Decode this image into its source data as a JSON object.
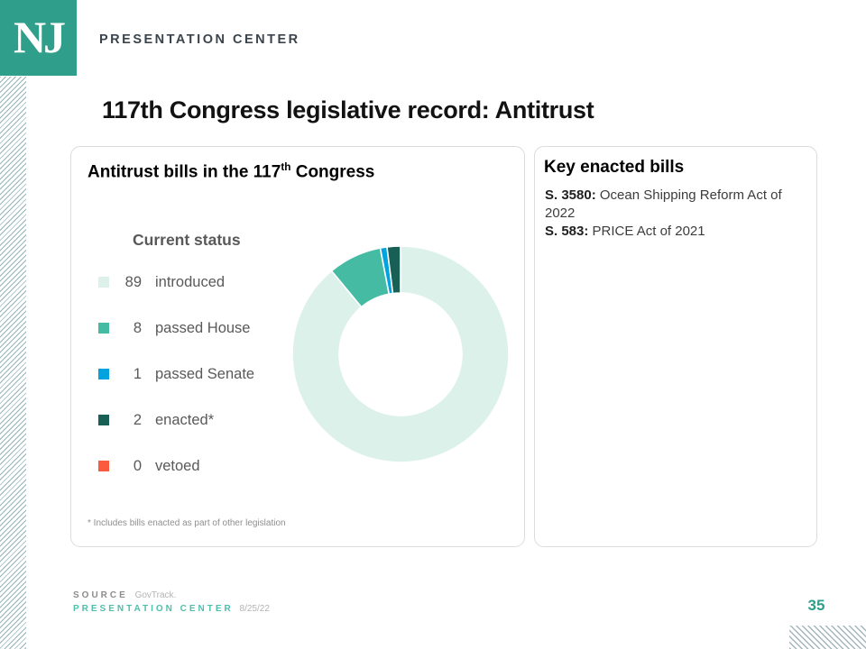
{
  "header": {
    "logo_text": "NJ",
    "brand": "PRESENTATION CENTER"
  },
  "title": "117th Congress legislative record: Antitrust",
  "chart_card": {
    "title_prefix": "Antitrust bills in the 117",
    "title_sup": "th",
    "title_suffix": " Congress",
    "footnote": "* Includes bills enacted as part of other legislation"
  },
  "chart_data": {
    "type": "pie",
    "donut": true,
    "title": "Current status",
    "categories": [
      "introduced",
      "passed House",
      "passed Senate",
      "enacted*",
      "vetoed"
    ],
    "values": [
      89,
      8,
      1,
      2,
      0
    ],
    "colors": [
      "#dcf1ea",
      "#45bba4",
      "#00a3e0",
      "#186056",
      "#fb5a3d"
    ],
    "legend_position": "left",
    "total": 100
  },
  "key_bills_card": {
    "title": "Key enacted bills",
    "bills": [
      {
        "number": "S. 3580:",
        "name": " Ocean Shipping Reform Act of 2022"
      },
      {
        "number": "S. 583:",
        "name": " PRICE Act of 2021"
      }
    ]
  },
  "footer": {
    "source_label": "SOURCE",
    "source_value": "GovTrack.",
    "brand": "PRESENTATION CENTER",
    "date": "8/25/22",
    "page_number": "35"
  },
  "colors": {
    "brand_teal": "#2f9e8a",
    "accent_teal_text": "#4dbfab",
    "hatch_left": "#3e7680",
    "hatch_corner": "#74909a"
  }
}
